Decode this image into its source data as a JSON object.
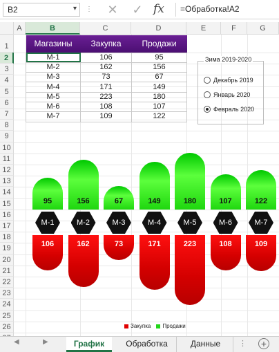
{
  "formula_bar": {
    "name_box": "B2",
    "formula": "=Обработка!A2"
  },
  "columns": [
    "A",
    "B",
    "C",
    "D",
    "E",
    "F",
    "G"
  ],
  "rows": [
    "1",
    "2",
    "3",
    "4",
    "5",
    "6",
    "7",
    "8",
    "9",
    "10",
    "11",
    "12",
    "13",
    "14",
    "15",
    "16",
    "17",
    "18",
    "19",
    "20",
    "21",
    "22",
    "23",
    "24",
    "25",
    "26",
    "27"
  ],
  "table": {
    "headers": [
      "Магазины",
      "Закупка",
      "Продажи"
    ],
    "rows": [
      [
        "М-1",
        "106",
        "95"
      ],
      [
        "М-2",
        "162",
        "156"
      ],
      [
        "М-3",
        "73",
        "67"
      ],
      [
        "М-4",
        "171",
        "149"
      ],
      [
        "М-5",
        "223",
        "180"
      ],
      [
        "М-6",
        "108",
        "107"
      ],
      [
        "М-7",
        "109",
        "122"
      ]
    ]
  },
  "group_box": {
    "title": "Зима 2019-2020",
    "options": [
      "Декабрь 2019",
      "Январь 2020",
      "Февраль 2020"
    ],
    "selected": "Февраль 2020"
  },
  "chart_data": {
    "type": "bar",
    "categories": [
      "М-1",
      "М-2",
      "М-3",
      "М-4",
      "М-5",
      "М-6",
      "М-7"
    ],
    "series": [
      {
        "name": "Закупка",
        "values": [
          106,
          162,
          73,
          171,
          223,
          108,
          109
        ],
        "color": "#e00000"
      },
      {
        "name": "Продажи",
        "values": [
          95,
          156,
          67,
          149,
          180,
          107,
          122
        ],
        "color": "#22d61a"
      }
    ],
    "legend": "bottom"
  },
  "tabs": [
    "График",
    "Обработка",
    "Данные"
  ],
  "active_tab": "График"
}
